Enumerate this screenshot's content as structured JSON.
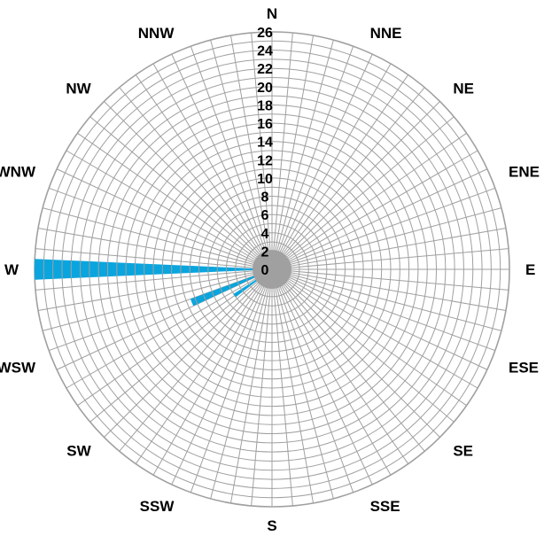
{
  "chart_data": {
    "type": "polar-bar",
    "title": "",
    "directions": [
      "N",
      "NNE",
      "NE",
      "ENE",
      "E",
      "ESE",
      "SE",
      "SSE",
      "S",
      "SSW",
      "SW",
      "WSW",
      "W",
      "WNW",
      "NW",
      "NNW"
    ],
    "radial_ticks": [
      "0",
      "2",
      "4",
      "6",
      "8",
      "10",
      "12",
      "14",
      "16",
      "18",
      "20",
      "22",
      "24",
      "26"
    ],
    "rlim": [
      0,
      26
    ],
    "grid": true,
    "bars": [
      {
        "direction_deg": 270,
        "value": 26
      },
      {
        "direction_deg": 247.5,
        "value": 9.5
      },
      {
        "direction_deg": 235,
        "value": 5
      }
    ],
    "colors": {
      "bar": "#0aa5de",
      "grid": "#a0a0a0",
      "center": "#a0a0a0"
    }
  }
}
